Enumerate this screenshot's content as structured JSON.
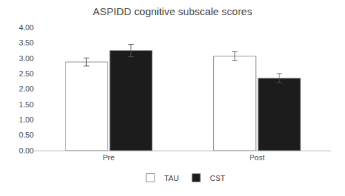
{
  "chart_data": {
    "type": "bar",
    "title": "ASPIDD cognitive subscale scores",
    "categories": [
      "Pre",
      "Post"
    ],
    "series": [
      {
        "name": "TAU",
        "color": "#ffffff",
        "values": [
          2.88,
          3.07
        ],
        "errors": [
          0.13,
          0.15
        ]
      },
      {
        "name": "CST",
        "color": "#1c1c1c",
        "values": [
          3.25,
          2.35
        ],
        "errors": [
          0.2,
          0.15
        ]
      }
    ],
    "ylim": [
      0.0,
      4.0
    ],
    "yticks": [
      {
        "value": 0.0,
        "label": "0.00"
      },
      {
        "value": 0.5,
        "label": "0.50"
      },
      {
        "value": 1.0,
        "label": "1.00"
      },
      {
        "value": 1.5,
        "label": "1.50"
      },
      {
        "value": 2.0,
        "label": "2.00"
      },
      {
        "value": 2.5,
        "label": "2.50"
      },
      {
        "value": 3.0,
        "label": "3.00"
      },
      {
        "value": 3.5,
        "label": "3.50"
      },
      {
        "value": 4.0,
        "label": "4.00"
      }
    ],
    "grid": false,
    "legend": "bottom"
  }
}
